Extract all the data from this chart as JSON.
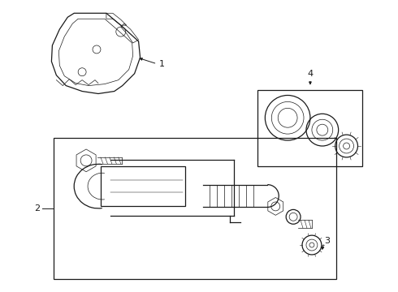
{
  "bg_color": "#ffffff",
  "line_color": "#1a1a1a",
  "line_width": 0.9,
  "thin_line": 0.5,
  "fig_w": 4.9,
  "fig_h": 3.6,
  "dpi": 100
}
